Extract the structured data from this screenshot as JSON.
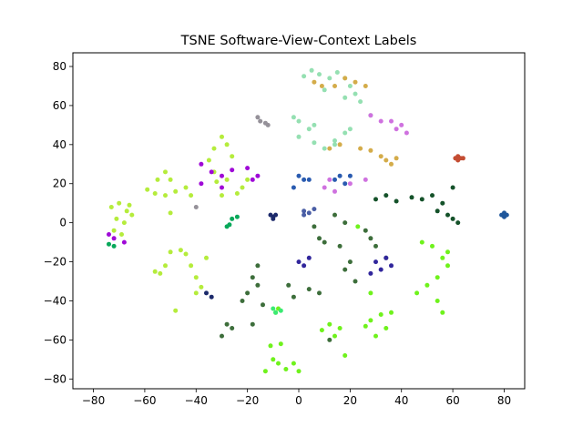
{
  "chart_data": {
    "type": "scatter",
    "title": "TSNE Software-View-Context Labels",
    "xlabel": "",
    "ylabel": "",
    "xlim": [
      -88,
      88
    ],
    "ylim": [
      -85,
      87
    ],
    "x_ticks": [
      -80,
      -60,
      -40,
      -20,
      0,
      20,
      40,
      60,
      80
    ],
    "y_ticks": [
      -80,
      -60,
      -40,
      -20,
      0,
      20,
      40,
      60,
      80
    ],
    "x_tick_labels": [
      "−80",
      "−60",
      "−40",
      "−20",
      "0",
      "20",
      "40",
      "60",
      "80"
    ],
    "y_tick_labels": [
      "−80",
      "−60",
      "−40",
      "−20",
      "0",
      "20",
      "40",
      "60",
      "80"
    ],
    "grid": false,
    "legend": "none",
    "point_radius": 2.5,
    "clusters": [
      {
        "color": "#b5ec3c",
        "points": [
          [
            -70,
            10
          ],
          [
            -67,
            6
          ],
          [
            -71,
            2
          ],
          [
            -72,
            -4
          ],
          [
            -68,
            0
          ],
          [
            -66,
            9
          ],
          [
            -73,
            8
          ],
          [
            -69,
            -6
          ],
          [
            -65,
            4
          ]
        ]
      },
      {
        "color": "#b5ec3c",
        "points": [
          [
            -59,
            17
          ],
          [
            -55,
            22
          ],
          [
            -52,
            26
          ],
          [
            -50,
            22
          ],
          [
            -52,
            14
          ],
          [
            -48,
            16
          ],
          [
            -44,
            18
          ],
          [
            -42,
            14
          ],
          [
            -50,
            5
          ],
          [
            -56,
            15
          ]
        ]
      },
      {
        "color": "#b5ec3c",
        "points": [
          [
            -35,
            32
          ],
          [
            -33,
            38
          ],
          [
            -30,
            44
          ],
          [
            -28,
            40
          ],
          [
            -26,
            34
          ],
          [
            -33,
            26
          ],
          [
            -28,
            22
          ],
          [
            -24,
            15
          ],
          [
            -22,
            18
          ],
          [
            -30,
            14
          ],
          [
            -32,
            21
          ],
          [
            -20,
            22
          ]
        ]
      },
      {
        "color": "#b5ec3c",
        "points": [
          [
            -56,
            -25
          ],
          [
            -52,
            -22
          ],
          [
            -50,
            -15
          ],
          [
            -46,
            -14
          ],
          [
            -44,
            -16
          ],
          [
            -42,
            -22
          ],
          [
            -40,
            -28
          ],
          [
            -38,
            -33
          ],
          [
            -40,
            -36
          ],
          [
            -36,
            -18
          ],
          [
            -48,
            -45
          ],
          [
            -54,
            -26
          ]
        ]
      },
      {
        "color": "#6ff21c",
        "points": [
          [
            -11,
            -63
          ],
          [
            -7,
            -62
          ],
          [
            -10,
            -70
          ],
          [
            -8,
            -72
          ],
          [
            -5,
            -75
          ],
          [
            -2,
            -72
          ],
          [
            0,
            -76
          ],
          [
            -13,
            -76
          ]
        ]
      },
      {
        "color": "#6ff21c",
        "points": [
          [
            9,
            -55
          ],
          [
            12,
            -52
          ],
          [
            14,
            -58
          ],
          [
            16,
            -54
          ],
          [
            28,
            -50
          ],
          [
            32,
            -47
          ],
          [
            36,
            -46
          ],
          [
            34,
            -54
          ],
          [
            30,
            -58
          ],
          [
            26,
            -53
          ],
          [
            28,
            -36
          ]
        ]
      },
      {
        "color": "#6ff21c",
        "points": [
          [
            48,
            -10
          ],
          [
            52,
            -12
          ],
          [
            56,
            -18
          ],
          [
            58,
            -15
          ],
          [
            54,
            -28
          ],
          [
            50,
            -32
          ],
          [
            46,
            -36
          ],
          [
            54,
            -40
          ],
          [
            56,
            -46
          ],
          [
            58,
            -22
          ]
        ]
      },
      {
        "color": "#6ff21c",
        "points": [
          [
            -8,
            -44
          ],
          [
            -9,
            -46
          ],
          [
            23,
            -2
          ],
          [
            18,
            -68
          ]
        ]
      },
      {
        "color": "#95e0b2",
        "points": [
          [
            2,
            75
          ],
          [
            5,
            78
          ],
          [
            8,
            76
          ],
          [
            12,
            74
          ],
          [
            15,
            77
          ],
          [
            18,
            74
          ],
          [
            20,
            70
          ],
          [
            22,
            66
          ],
          [
            18,
            64
          ],
          [
            10,
            68
          ],
          [
            -2,
            54
          ],
          [
            0,
            52
          ],
          [
            4,
            48
          ],
          [
            6,
            50
          ],
          [
            0,
            44
          ],
          [
            6,
            41
          ],
          [
            10,
            38
          ],
          [
            14,
            42
          ],
          [
            18,
            46
          ],
          [
            20,
            48
          ],
          [
            14,
            40
          ],
          [
            28,
            55
          ],
          [
            24,
            62
          ]
        ]
      },
      {
        "color": "#d4ac4a",
        "points": [
          [
            6,
            72
          ],
          [
            9,
            70
          ],
          [
            14,
            70
          ],
          [
            18,
            74
          ],
          [
            22,
            72
          ],
          [
            26,
            70
          ],
          [
            12,
            38
          ],
          [
            16,
            40
          ],
          [
            28,
            37
          ],
          [
            32,
            34
          ],
          [
            34,
            32
          ],
          [
            36,
            30
          ],
          [
            38,
            33
          ],
          [
            24,
            38
          ]
        ]
      },
      {
        "color": "#cf72df",
        "points": [
          [
            28,
            55
          ],
          [
            32,
            52
          ],
          [
            36,
            52
          ],
          [
            40,
            50
          ],
          [
            38,
            48
          ],
          [
            42,
            46
          ],
          [
            26,
            22
          ],
          [
            20,
            20
          ],
          [
            12,
            22
          ],
          [
            10,
            18
          ],
          [
            14,
            16
          ]
        ]
      },
      {
        "color": "#9f0ad7",
        "points": [
          [
            -38,
            30
          ],
          [
            -34,
            26
          ],
          [
            -30,
            24
          ],
          [
            -26,
            27
          ],
          [
            -20,
            28
          ],
          [
            -16,
            24
          ],
          [
            -38,
            20
          ],
          [
            -30,
            18
          ],
          [
            -72,
            -8
          ],
          [
            -68,
            -10
          ],
          [
            -74,
            -6
          ],
          [
            -18,
            22
          ]
        ]
      },
      {
        "color": "#3d6e3b",
        "points": [
          [
            6,
            -2
          ],
          [
            8,
            -8
          ],
          [
            10,
            -10
          ],
          [
            18,
            0
          ],
          [
            14,
            4
          ],
          [
            16,
            -12
          ],
          [
            20,
            -20
          ],
          [
            18,
            -24
          ],
          [
            22,
            -30
          ],
          [
            26,
            -4
          ],
          [
            28,
            -8
          ],
          [
            30,
            -12
          ],
          [
            34,
            -18
          ],
          [
            -18,
            -28
          ],
          [
            -16,
            -32
          ],
          [
            -20,
            -36
          ],
          [
            -22,
            -40
          ],
          [
            -16,
            -22
          ],
          [
            -14,
            -42
          ],
          [
            -18,
            -52
          ],
          [
            -28,
            -52
          ],
          [
            -30,
            -58
          ],
          [
            -26,
            -54
          ],
          [
            -4,
            -32
          ],
          [
            -2,
            -38
          ],
          [
            4,
            -34
          ],
          [
            8,
            -36
          ],
          [
            12,
            -60
          ]
        ]
      },
      {
        "color": "#15522a",
        "points": [
          [
            30,
            12
          ],
          [
            34,
            14
          ],
          [
            38,
            11
          ],
          [
            44,
            13
          ],
          [
            48,
            12
          ],
          [
            52,
            14
          ],
          [
            56,
            10
          ],
          [
            58,
            4
          ],
          [
            60,
            2
          ],
          [
            62,
            0
          ],
          [
            54,
            6
          ],
          [
            60,
            18
          ]
        ]
      },
      {
        "color": "#2a5bb0",
        "points": [
          [
            0,
            24
          ],
          [
            2,
            22
          ],
          [
            4,
            22
          ],
          [
            14,
            22
          ],
          [
            18,
            20
          ],
          [
            16,
            24
          ],
          [
            20,
            24
          ],
          [
            -2,
            18
          ]
        ]
      },
      {
        "color": "#4a5ea5",
        "points": [
          [
            2,
            6
          ],
          [
            4,
            5
          ],
          [
            6,
            7
          ],
          [
            2,
            4
          ]
        ]
      },
      {
        "color": "#31269c",
        "points": [
          [
            0,
            -20
          ],
          [
            2,
            -22
          ],
          [
            4,
            -18
          ],
          [
            30,
            -20
          ],
          [
            32,
            -24
          ],
          [
            36,
            -22
          ],
          [
            34,
            -18
          ],
          [
            28,
            -26
          ]
        ]
      },
      {
        "color": "#c44d33",
        "points": [
          [
            61,
            33
          ],
          [
            62,
            34
          ],
          [
            63,
            33
          ],
          [
            64,
            33
          ],
          [
            62,
            32
          ]
        ]
      },
      {
        "color": "#1e569b",
        "points": [
          [
            79,
            4
          ],
          [
            80,
            5
          ],
          [
            81,
            4
          ],
          [
            80,
            3
          ]
        ]
      },
      {
        "color": "#959199",
        "points": [
          [
            -16,
            54
          ],
          [
            -15,
            52
          ],
          [
            -13,
            51
          ],
          [
            -12,
            50
          ],
          [
            -40,
            8
          ]
        ]
      },
      {
        "color": "#08a85a",
        "points": [
          [
            -26,
            2
          ],
          [
            -24,
            3
          ],
          [
            -27,
            -1
          ],
          [
            -28,
            -2
          ],
          [
            -72,
            -12
          ],
          [
            -74,
            -11
          ]
        ]
      },
      {
        "color": "#3aea73",
        "points": [
          [
            -7,
            -45
          ],
          [
            -9,
            -46
          ],
          [
            -10,
            -44
          ]
        ]
      },
      {
        "color": "#1c2a6b",
        "points": [
          [
            -11,
            4
          ],
          [
            -10,
            3
          ],
          [
            -9,
            4
          ],
          [
            -10,
            2
          ],
          [
            -34,
            -38
          ],
          [
            -36,
            -36
          ]
        ]
      }
    ]
  }
}
